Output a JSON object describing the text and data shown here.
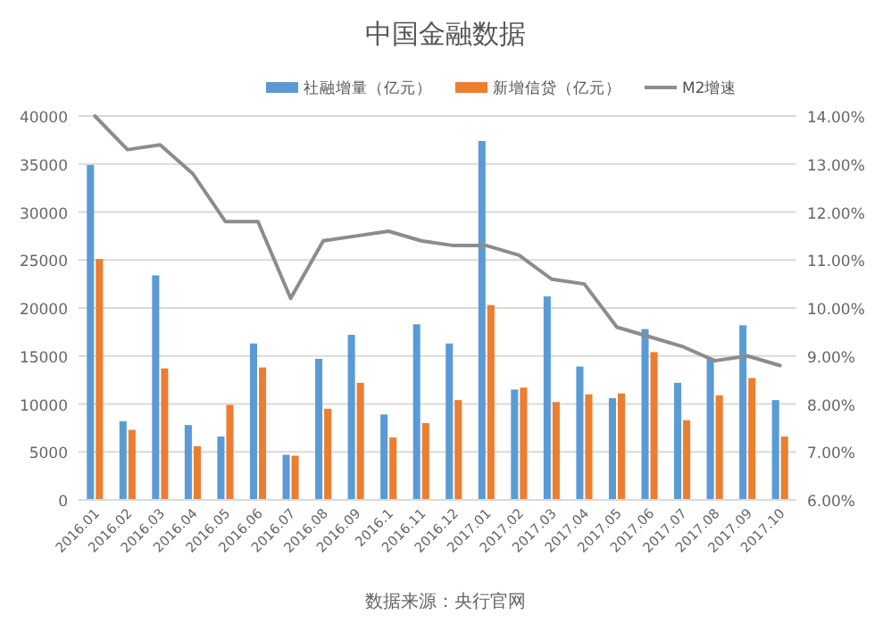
{
  "chart_data": {
    "type": "bar",
    "title": "中国金融数据",
    "categories": [
      "2016.01",
      "2016.02",
      "2016.03",
      "2016.04",
      "2016.05",
      "2016.06",
      "2016.07",
      "2016.08",
      "2016.09",
      "2016.1",
      "2016.11",
      "2016.12",
      "2017.01",
      "2017.02",
      "2017.03",
      "2017.04",
      "2017.05",
      "2017.06",
      "2017.07",
      "2017.08",
      "2017.09",
      "2017.10"
    ],
    "series": [
      {
        "name": "社融增量（亿元）",
        "color": "#5b9bd5",
        "values": [
          34900,
          8200,
          23400,
          7800,
          6600,
          16300,
          4700,
          14700,
          17200,
          8900,
          18300,
          16300,
          37400,
          11500,
          21200,
          13900,
          10600,
          17800,
          12200,
          14800,
          18200,
          10400
        ]
      },
      {
        "name": "新增信贷（亿元）",
        "color": "#ed7d31",
        "values": [
          25100,
          7300,
          13700,
          5600,
          9900,
          13800,
          4600,
          9500,
          12200,
          6500,
          8000,
          10400,
          20300,
          11700,
          10200,
          11000,
          11100,
          15400,
          8300,
          10900,
          12700,
          6600
        ]
      },
      {
        "name": "M2增速",
        "type": "line",
        "axis": "y2",
        "color": "#8c8c8c",
        "values": [
          14.0,
          13.3,
          13.4,
          12.8,
          11.8,
          11.8,
          10.2,
          11.4,
          11.5,
          11.6,
          11.4,
          11.3,
          11.3,
          11.1,
          10.6,
          10.5,
          9.6,
          9.4,
          9.2,
          8.9,
          9.0,
          8.8
        ]
      }
    ],
    "ylim": [
      0,
      40000
    ],
    "yticks": [
      0,
      5000,
      10000,
      15000,
      20000,
      25000,
      30000,
      35000,
      40000
    ],
    "y2lim": [
      6,
      14
    ],
    "y2ticks": [
      {
        "value": 6,
        "label": "6.00%"
      },
      {
        "value": 7,
        "label": "7.00%"
      },
      {
        "value": 8,
        "label": "8.00%"
      },
      {
        "value": 9,
        "label": "9.00%"
      },
      {
        "value": 10,
        "label": "10.00%"
      },
      {
        "value": 11,
        "label": "11.00%"
      },
      {
        "value": 12,
        "label": "12.00%"
      },
      {
        "value": 13,
        "label": "13.00%"
      },
      {
        "value": 14,
        "label": "14.00%"
      }
    ],
    "grid": "y",
    "legend": "top",
    "annotations": [
      "数据来源：央行官网"
    ]
  }
}
